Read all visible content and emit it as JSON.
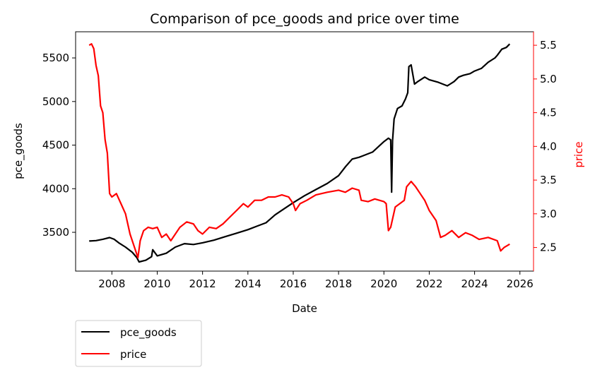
{
  "chart_data": {
    "type": "line",
    "title": "Comparison of pce_goods and price over time",
    "xlabel": "Date",
    "ylabel_left": "pce_goods",
    "ylabel_right": "price",
    "x_ticks": [
      "2008",
      "2010",
      "2012",
      "2014",
      "2016",
      "2018",
      "2020",
      "2022",
      "2024",
      "2026"
    ],
    "y_left_ticks": [
      "3500",
      "4000",
      "4500",
      "5000",
      "5500"
    ],
    "y_right_ticks": [
      "2.5",
      "3.0",
      "3.5",
      "4.0",
      "4.5",
      "5.0",
      "5.5"
    ],
    "xlim": [
      2006.4,
      2026.6
    ],
    "ylim_left": [
      3055,
      5800
    ],
    "ylim_right": [
      2.15,
      5.7
    ],
    "grid": false,
    "legend_position": "below-left",
    "series": [
      {
        "name": "pce_goods",
        "axis": "left",
        "color": "#000000",
        "x": [
          2007.0,
          2007.3,
          2007.6,
          2007.9,
          2008.1,
          2008.3,
          2008.6,
          2008.9,
          2009.1,
          2009.2,
          2009.5,
          2009.75,
          2009.8,
          2010.0,
          2010.4,
          2010.8,
          2011.2,
          2011.6,
          2012.0,
          2012.5,
          2013.0,
          2013.5,
          2014.0,
          2014.4,
          2014.8,
          2015.2,
          2015.6,
          2016.0,
          2016.5,
          2017.0,
          2017.5,
          2018.0,
          2018.3,
          2018.6,
          2018.9,
          2019.1,
          2019.5,
          2020.0,
          2020.2,
          2020.3,
          2020.34,
          2020.38,
          2020.45,
          2020.6,
          2020.8,
          2020.95,
          2021.05,
          2021.1,
          2021.2,
          2021.35,
          2021.5,
          2021.8,
          2022.0,
          2022.4,
          2022.8,
          2023.1,
          2023.3,
          2023.5,
          2023.8,
          2024.0,
          2024.3,
          2024.6,
          2024.9,
          2025.0,
          2025.2,
          2025.4,
          2025.55
        ],
        "values": [
          3400,
          3405,
          3420,
          3440,
          3420,
          3380,
          3330,
          3270,
          3210,
          3160,
          3180,
          3220,
          3300,
          3230,
          3260,
          3330,
          3370,
          3360,
          3380,
          3410,
          3450,
          3490,
          3530,
          3570,
          3610,
          3700,
          3770,
          3840,
          3920,
          3990,
          4060,
          4150,
          4250,
          4340,
          4360,
          4380,
          4420,
          4540,
          4580,
          4560,
          3960,
          4550,
          4800,
          4920,
          4950,
          5030,
          5100,
          5400,
          5420,
          5200,
          5230,
          5280,
          5250,
          5220,
          5180,
          5230,
          5280,
          5300,
          5320,
          5350,
          5380,
          5450,
          5500,
          5530,
          5600,
          5620,
          5660
        ]
      },
      {
        "name": "price",
        "axis": "right",
        "color": "#ff0000",
        "x": [
          2007.0,
          2007.1,
          2007.2,
          2007.3,
          2007.4,
          2007.5,
          2007.6,
          2007.7,
          2007.8,
          2007.9,
          2008.0,
          2008.2,
          2008.4,
          2008.6,
          2008.8,
          2009.0,
          2009.15,
          2009.25,
          2009.4,
          2009.6,
          2009.8,
          2010.0,
          2010.2,
          2010.4,
          2010.6,
          2010.8,
          2011.0,
          2011.3,
          2011.6,
          2011.8,
          2012.0,
          2012.3,
          2012.6,
          2012.9,
          2013.2,
          2013.5,
          2013.8,
          2014.0,
          2014.3,
          2014.6,
          2014.9,
          2015.2,
          2015.5,
          2015.8,
          2016.0,
          2016.1,
          2016.3,
          2016.6,
          2017.0,
          2017.5,
          2018.0,
          2018.3,
          2018.6,
          2018.9,
          2019.0,
          2019.3,
          2019.6,
          2020.0,
          2020.1,
          2020.2,
          2020.3,
          2020.5,
          2020.7,
          2020.9,
          2021.0,
          2021.2,
          2021.4,
          2021.6,
          2021.8,
          2022.0,
          2022.3,
          2022.5,
          2022.7,
          2023.0,
          2023.3,
          2023.6,
          2023.9,
          2024.2,
          2024.6,
          2025.0,
          2025.15,
          2025.3,
          2025.55
        ],
        "values": [
          5.5,
          5.52,
          5.45,
          5.2,
          5.05,
          4.6,
          4.5,
          4.1,
          3.9,
          3.3,
          3.25,
          3.3,
          3.15,
          3.0,
          2.7,
          2.5,
          2.35,
          2.6,
          2.75,
          2.8,
          2.78,
          2.8,
          2.65,
          2.7,
          2.6,
          2.7,
          2.8,
          2.88,
          2.85,
          2.75,
          2.7,
          2.8,
          2.78,
          2.85,
          2.95,
          3.05,
          3.15,
          3.1,
          3.2,
          3.2,
          3.25,
          3.25,
          3.28,
          3.25,
          3.15,
          3.05,
          3.15,
          3.2,
          3.28,
          3.32,
          3.35,
          3.32,
          3.38,
          3.35,
          3.2,
          3.18,
          3.22,
          3.18,
          3.15,
          2.75,
          2.8,
          3.1,
          3.15,
          3.2,
          3.4,
          3.48,
          3.4,
          3.3,
          3.2,
          3.05,
          2.9,
          2.65,
          2.68,
          2.75,
          2.65,
          2.72,
          2.68,
          2.62,
          2.65,
          2.6,
          2.45,
          2.5,
          2.55
        ]
      }
    ]
  }
}
